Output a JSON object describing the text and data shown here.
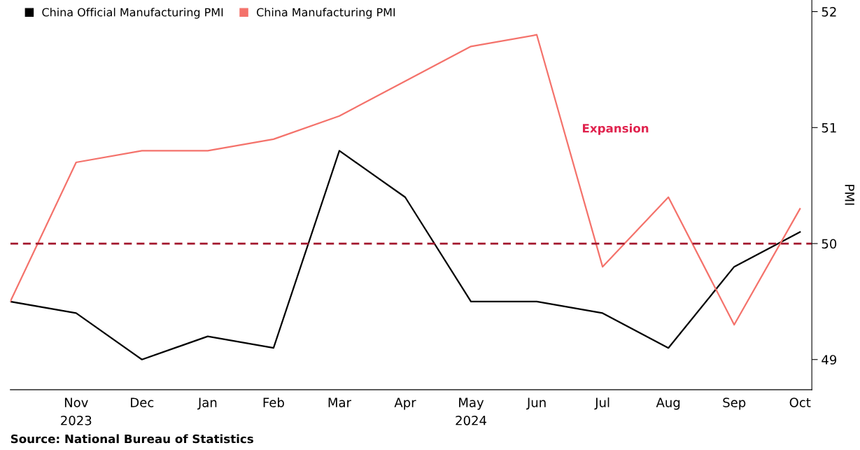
{
  "chart_data": {
    "type": "line",
    "ylabel": "PMI",
    "categories": [
      null,
      "Nov\n2023",
      "Dec",
      "Jan",
      "Feb",
      "Mar",
      "Apr",
      "May\n2024",
      "Jun",
      "Jul",
      "Aug",
      "Sep",
      "Oct"
    ],
    "series": [
      {
        "name": "China Official Manufacturing PMI",
        "color": "#000000",
        "values": [
          49.5,
          49.4,
          49.0,
          49.2,
          49.1,
          50.8,
          50.4,
          49.5,
          49.5,
          49.4,
          49.1,
          49.8,
          50.1
        ]
      },
      {
        "name": "China Manufacturing PMI",
        "color": "#f4726b",
        "values": [
          49.5,
          50.7,
          50.8,
          50.8,
          50.9,
          51.1,
          51.4,
          51.7,
          51.8,
          49.8,
          50.4,
          49.3,
          50.3
        ]
      }
    ],
    "ylim": [
      48.74,
      52.1
    ],
    "yticks": [
      49,
      50,
      51,
      52
    ],
    "ref_lines": [
      {
        "axis": "y",
        "value": 50,
        "color": "#a3162c",
        "line_style": "dashed"
      }
    ],
    "annotations": [
      "Expansion",
      "Source: National Bureau of Statistics"
    ],
    "legend": "top left",
    "grid": false,
    "marker": "none",
    "line_style": "solid"
  }
}
